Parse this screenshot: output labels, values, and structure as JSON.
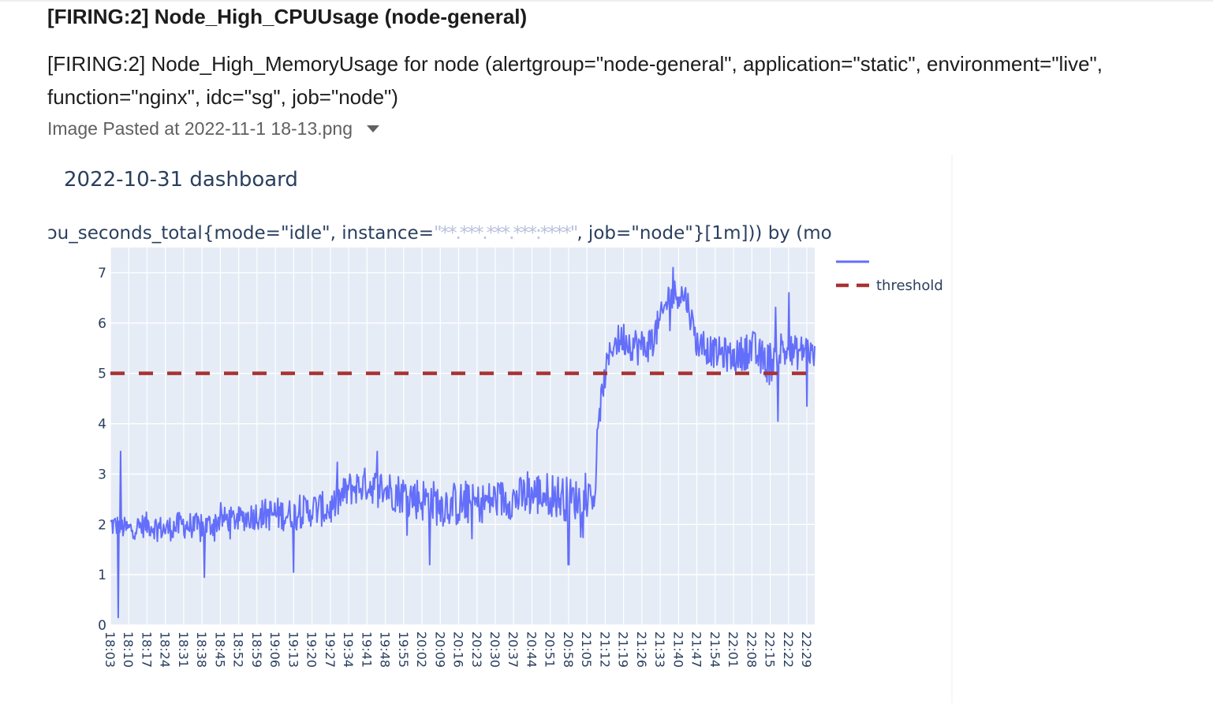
{
  "message": {
    "title": "[FIRING:2] Node_High_CPUUsage (node-general)",
    "body": "[FIRING:2] Node_High_MemoryUsage for node (alertgroup=\"node-general\", application=\"static\", environment=\"live\", function=\"nginx\", idc=\"sg\", job=\"node\")",
    "attachment_name": "Image Pasted at 2022-11-1 18-13.png",
    "attachment_icon": "caret-down-icon"
  },
  "chart_data": {
    "type": "line",
    "title": "2022-10-31 dashboard",
    "query_caption": "ɔu_seconds_total{mode=\"idle\", instance=\"\", job=\"node\"}[1m])) by (mo",
    "query_redacted_part": "\"**.***.***.***:****\"",
    "xlabel": "",
    "ylabel": "",
    "ylim": [
      0,
      7.5
    ],
    "yticks": [
      0,
      1,
      2,
      3,
      4,
      5,
      6,
      7
    ],
    "x_range": [
      "18:03",
      "22:32"
    ],
    "xticks": [
      "18:03",
      "18:10",
      "18:17",
      "18:24",
      "18:31",
      "18:38",
      "18:45",
      "18:52",
      "18:59",
      "19:06",
      "19:13",
      "19:20",
      "19:27",
      "19:34",
      "19:41",
      "19:48",
      "19:55",
      "20:02",
      "20:09",
      "20:16",
      "20:23",
      "20:30",
      "20:37",
      "20:44",
      "20:51",
      "20:58",
      "21:05",
      "21:12",
      "21:19",
      "21:26",
      "21:33",
      "21:40",
      "21:47",
      "21:54",
      "22:01",
      "22:08",
      "22:15",
      "22:22",
      "22:29"
    ],
    "grid": true,
    "legend_position": "right",
    "series": [
      {
        "name": "",
        "color": "#636efa",
        "x": [
          "18:03",
          "18:10",
          "18:17",
          "18:24",
          "18:31",
          "18:38",
          "18:45",
          "18:52",
          "18:59",
          "19:06",
          "19:13",
          "19:20",
          "19:27",
          "19:34",
          "19:41",
          "19:48",
          "19:55",
          "20:02",
          "20:09",
          "20:16",
          "20:23",
          "20:30",
          "20:37",
          "20:44",
          "20:51",
          "20:58",
          "21:05",
          "21:08",
          "21:10",
          "21:12",
          "21:15",
          "21:19",
          "21:22",
          "21:26",
          "21:29",
          "21:33",
          "21:36",
          "21:40",
          "21:43",
          "21:47",
          "21:50",
          "21:54",
          "21:57",
          "22:01",
          "22:04",
          "22:08",
          "22:11",
          "22:15",
          "22:18",
          "22:22",
          "22:25",
          "22:29",
          "22:32"
        ],
        "values": [
          2.0,
          1.9,
          2.0,
          1.9,
          2.0,
          1.9,
          2.1,
          2.1,
          2.2,
          2.2,
          2.2,
          2.3,
          2.3,
          2.7,
          2.8,
          2.7,
          2.6,
          2.5,
          2.4,
          2.4,
          2.4,
          2.5,
          2.5,
          2.6,
          2.6,
          2.5,
          2.5,
          2.6,
          4.3,
          5.0,
          5.6,
          5.7,
          5.6,
          5.5,
          5.6,
          6.0,
          6.5,
          6.6,
          6.5,
          5.6,
          5.5,
          5.4,
          5.4,
          5.3,
          5.4,
          5.5,
          5.3,
          5.2,
          5.5,
          5.4,
          5.4,
          5.5,
          5.3
        ],
        "noise": [
          0.25,
          0.22,
          0.25,
          0.25,
          0.28,
          0.3,
          0.25,
          0.25,
          0.3,
          0.35,
          0.3,
          0.35,
          0.35,
          0.35,
          0.35,
          0.4,
          0.4,
          0.45,
          0.45,
          0.45,
          0.4,
          0.4,
          0.4,
          0.45,
          0.45,
          0.45,
          0.35,
          0.3,
          0.3,
          0.3,
          0.3,
          0.35,
          0.35,
          0.4,
          0.35,
          0.35,
          0.35,
          0.3,
          0.3,
          0.3,
          0.3,
          0.3,
          0.35,
          0.3,
          0.35,
          0.4,
          0.4,
          0.45,
          0.4,
          0.4,
          0.35,
          0.3,
          0.3
        ],
        "spikes": [
          {
            "x": "18:06",
            "y": 0.15
          },
          {
            "x": "18:07",
            "y": 3.45
          },
          {
            "x": "18:39",
            "y": 0.95
          },
          {
            "x": "19:13",
            "y": 1.05
          },
          {
            "x": "19:45",
            "y": 3.45
          },
          {
            "x": "20:05",
            "y": 1.2
          },
          {
            "x": "20:58",
            "y": 1.2
          },
          {
            "x": "21:38",
            "y": 7.1
          },
          {
            "x": "22:18",
            "y": 4.05
          },
          {
            "x": "22:22",
            "y": 6.6
          },
          {
            "x": "22:29",
            "y": 4.35
          }
        ]
      },
      {
        "name": "threshold",
        "color": "#a83232",
        "dash": "dash",
        "x": [
          "18:03",
          "22:32"
        ],
        "values": [
          5,
          5
        ]
      }
    ]
  }
}
